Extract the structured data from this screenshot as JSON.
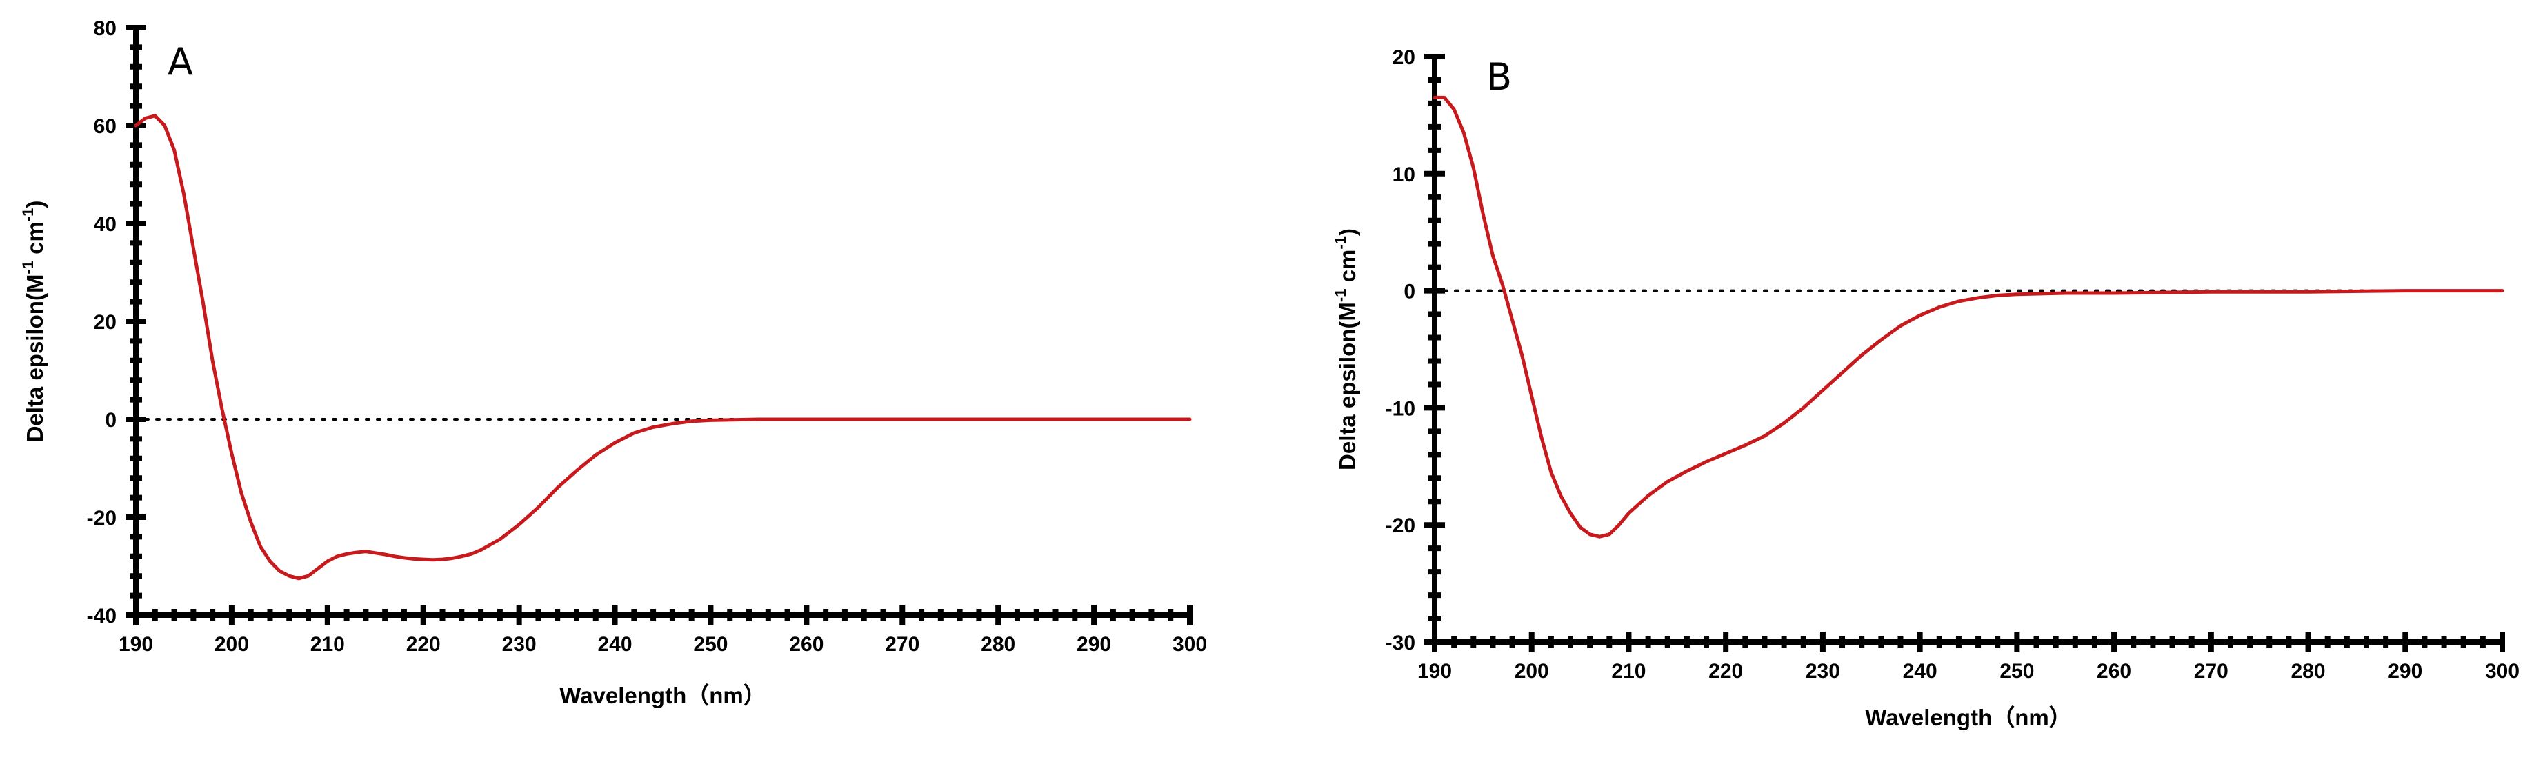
{
  "chart_data": [
    {
      "type": "line",
      "panel_label": "A",
      "xlabel": "Wavelength（nm）",
      "ylabel_parts": [
        "Delta epsilon(M",
        "-1",
        " cm",
        "-1",
        ")"
      ],
      "xlim": [
        190,
        300
      ],
      "ylim": [
        -40,
        80
      ],
      "xticks": [
        190,
        200,
        210,
        220,
        230,
        240,
        250,
        260,
        270,
        280,
        290,
        300
      ],
      "yticks": [
        -40,
        -20,
        0,
        20,
        40,
        60,
        80
      ],
      "zero_line": true,
      "series": [
        {
          "color": "#c8191c",
          "x": [
            190,
            191,
            192,
            193,
            194,
            195,
            196,
            197,
            198,
            199,
            200,
            201,
            202,
            203,
            204,
            205,
            206,
            207,
            208,
            209,
            210,
            211,
            212,
            213,
            214,
            215,
            216,
            217,
            218,
            219,
            220,
            221,
            222,
            223,
            224,
            225,
            226,
            228,
            230,
            232,
            234,
            236,
            238,
            240,
            242,
            244,
            246,
            248,
            250,
            255,
            260,
            270,
            280,
            290,
            300
          ],
          "y": [
            60,
            61.5,
            62,
            60,
            55,
            46,
            35,
            24,
            12,
            2,
            -7,
            -15,
            -21,
            -26,
            -29,
            -31,
            -32,
            -32.5,
            -32,
            -30.5,
            -29,
            -28,
            -27.5,
            -27.2,
            -27,
            -27.3,
            -27.6,
            -28,
            -28.3,
            -28.5,
            -28.6,
            -28.7,
            -28.6,
            -28.4,
            -28,
            -27.5,
            -26.7,
            -24.5,
            -21.5,
            -18,
            -14,
            -10.5,
            -7.3,
            -4.8,
            -2.8,
            -1.6,
            -0.9,
            -0.4,
            -0.2,
            0,
            0,
            0,
            0,
            0,
            0
          ]
        }
      ]
    },
    {
      "type": "line",
      "panel_label": "B",
      "xlabel": "Wavelength（nm）",
      "ylabel_parts": [
        "Delta epsilon(M",
        "-1",
        " cm",
        "-1",
        ")"
      ],
      "xlim": [
        190,
        300
      ],
      "ylim": [
        -30,
        20
      ],
      "xticks": [
        190,
        200,
        210,
        220,
        230,
        240,
        250,
        260,
        270,
        280,
        290,
        300
      ],
      "yticks": [
        -30,
        -20,
        -10,
        0,
        10,
        20
      ],
      "zero_line": true,
      "series": [
        {
          "color": "#c8191c",
          "x": [
            190,
            191,
            192,
            193,
            194,
            195,
            196,
            197,
            198,
            199,
            200,
            201,
            202,
            203,
            204,
            205,
            206,
            207,
            208,
            209,
            210,
            212,
            214,
            216,
            218,
            220,
            222,
            224,
            226,
            228,
            230,
            232,
            234,
            236,
            238,
            240,
            242,
            244,
            246,
            248,
            250,
            255,
            260,
            270,
            280,
            290,
            300
          ],
          "y": [
            16.5,
            16.5,
            15.5,
            13.5,
            10.5,
            6.5,
            3,
            0.5,
            -2.5,
            -5.5,
            -9,
            -12.5,
            -15.5,
            -17.5,
            -19,
            -20.2,
            -20.8,
            -21,
            -20.8,
            -20,
            -19,
            -17.5,
            -16.3,
            -15.4,
            -14.6,
            -13.9,
            -13.2,
            -12.4,
            -11.3,
            -10,
            -8.5,
            -7,
            -5.5,
            -4.2,
            -3,
            -2.1,
            -1.4,
            -0.9,
            -0.6,
            -0.4,
            -0.3,
            -0.2,
            -0.2,
            -0.1,
            -0.1,
            0,
            0
          ]
        }
      ]
    }
  ]
}
